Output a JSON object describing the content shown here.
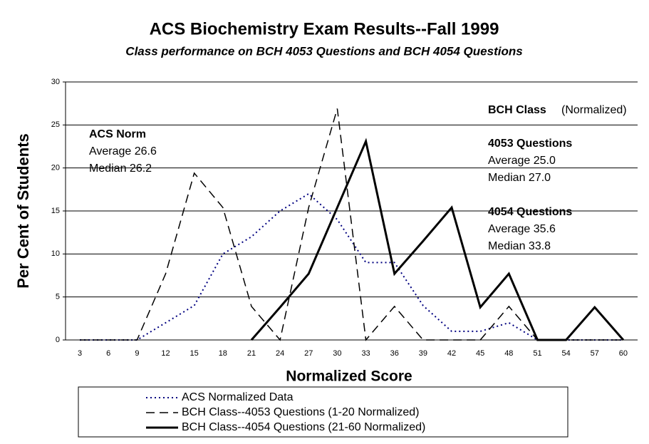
{
  "chart_data": {
    "type": "line",
    "title": "ACS Biochemistry Exam Results--Fall 1999",
    "subtitle": "Class performance on BCH 4053 Questions and BCH 4054 Questions",
    "x_label": "Normalized Score",
    "y_label": "Per Cent of Students",
    "categories": [
      3,
      6,
      9,
      12,
      15,
      18,
      21,
      24,
      27,
      30,
      33,
      36,
      39,
      42,
      45,
      48,
      51,
      54,
      57,
      60
    ],
    "series": [
      {
        "name": "ACS Normalized Data",
        "color": "#000080",
        "style": "dotted",
        "values": [
          0,
          0,
          0,
          2,
          4,
          10,
          12,
          15,
          17,
          14,
          9,
          9,
          4,
          1,
          1,
          2,
          0,
          0,
          0,
          0
        ]
      },
      {
        "name": "BCH Class--4053 Questions (1-20 Normalized)",
        "color": "#000000",
        "style": "dashed",
        "values": [
          0,
          0,
          0,
          7.7,
          19.4,
          15.4,
          3.9,
          0,
          15.4,
          26.9,
          0,
          3.9,
          0,
          0,
          0,
          3.9,
          0,
          0,
          0,
          0
        ]
      },
      {
        "name": "BCH Class--4054 Questions (21-60 Normalized)",
        "color": "#000000",
        "style": "solid",
        "values": [
          null,
          null,
          null,
          null,
          null,
          null,
          0,
          3.8,
          7.7,
          15.4,
          23.1,
          7.7,
          11.5,
          15.4,
          3.8,
          7.7,
          0,
          0,
          3.8,
          0
        ]
      }
    ],
    "ylim": [
      0,
      30
    ],
    "yticks": [
      0,
      5,
      10,
      15,
      20,
      25,
      30
    ],
    "grid": true,
    "annotations": {
      "acs": {
        "heading": "ACS Norm",
        "average": "Average 26.6",
        "median": "Median 26.2"
      },
      "bch": {
        "heading": "BCH Class",
        "note": "(Normalized)"
      },
      "q4053": {
        "heading": "4053 Questions",
        "average": "Average 25.0",
        "median": "Median 27.0"
      },
      "q4054": {
        "heading": "4054 Questions",
        "average": "Average 35.6",
        "median": "Median 33.8"
      }
    }
  }
}
